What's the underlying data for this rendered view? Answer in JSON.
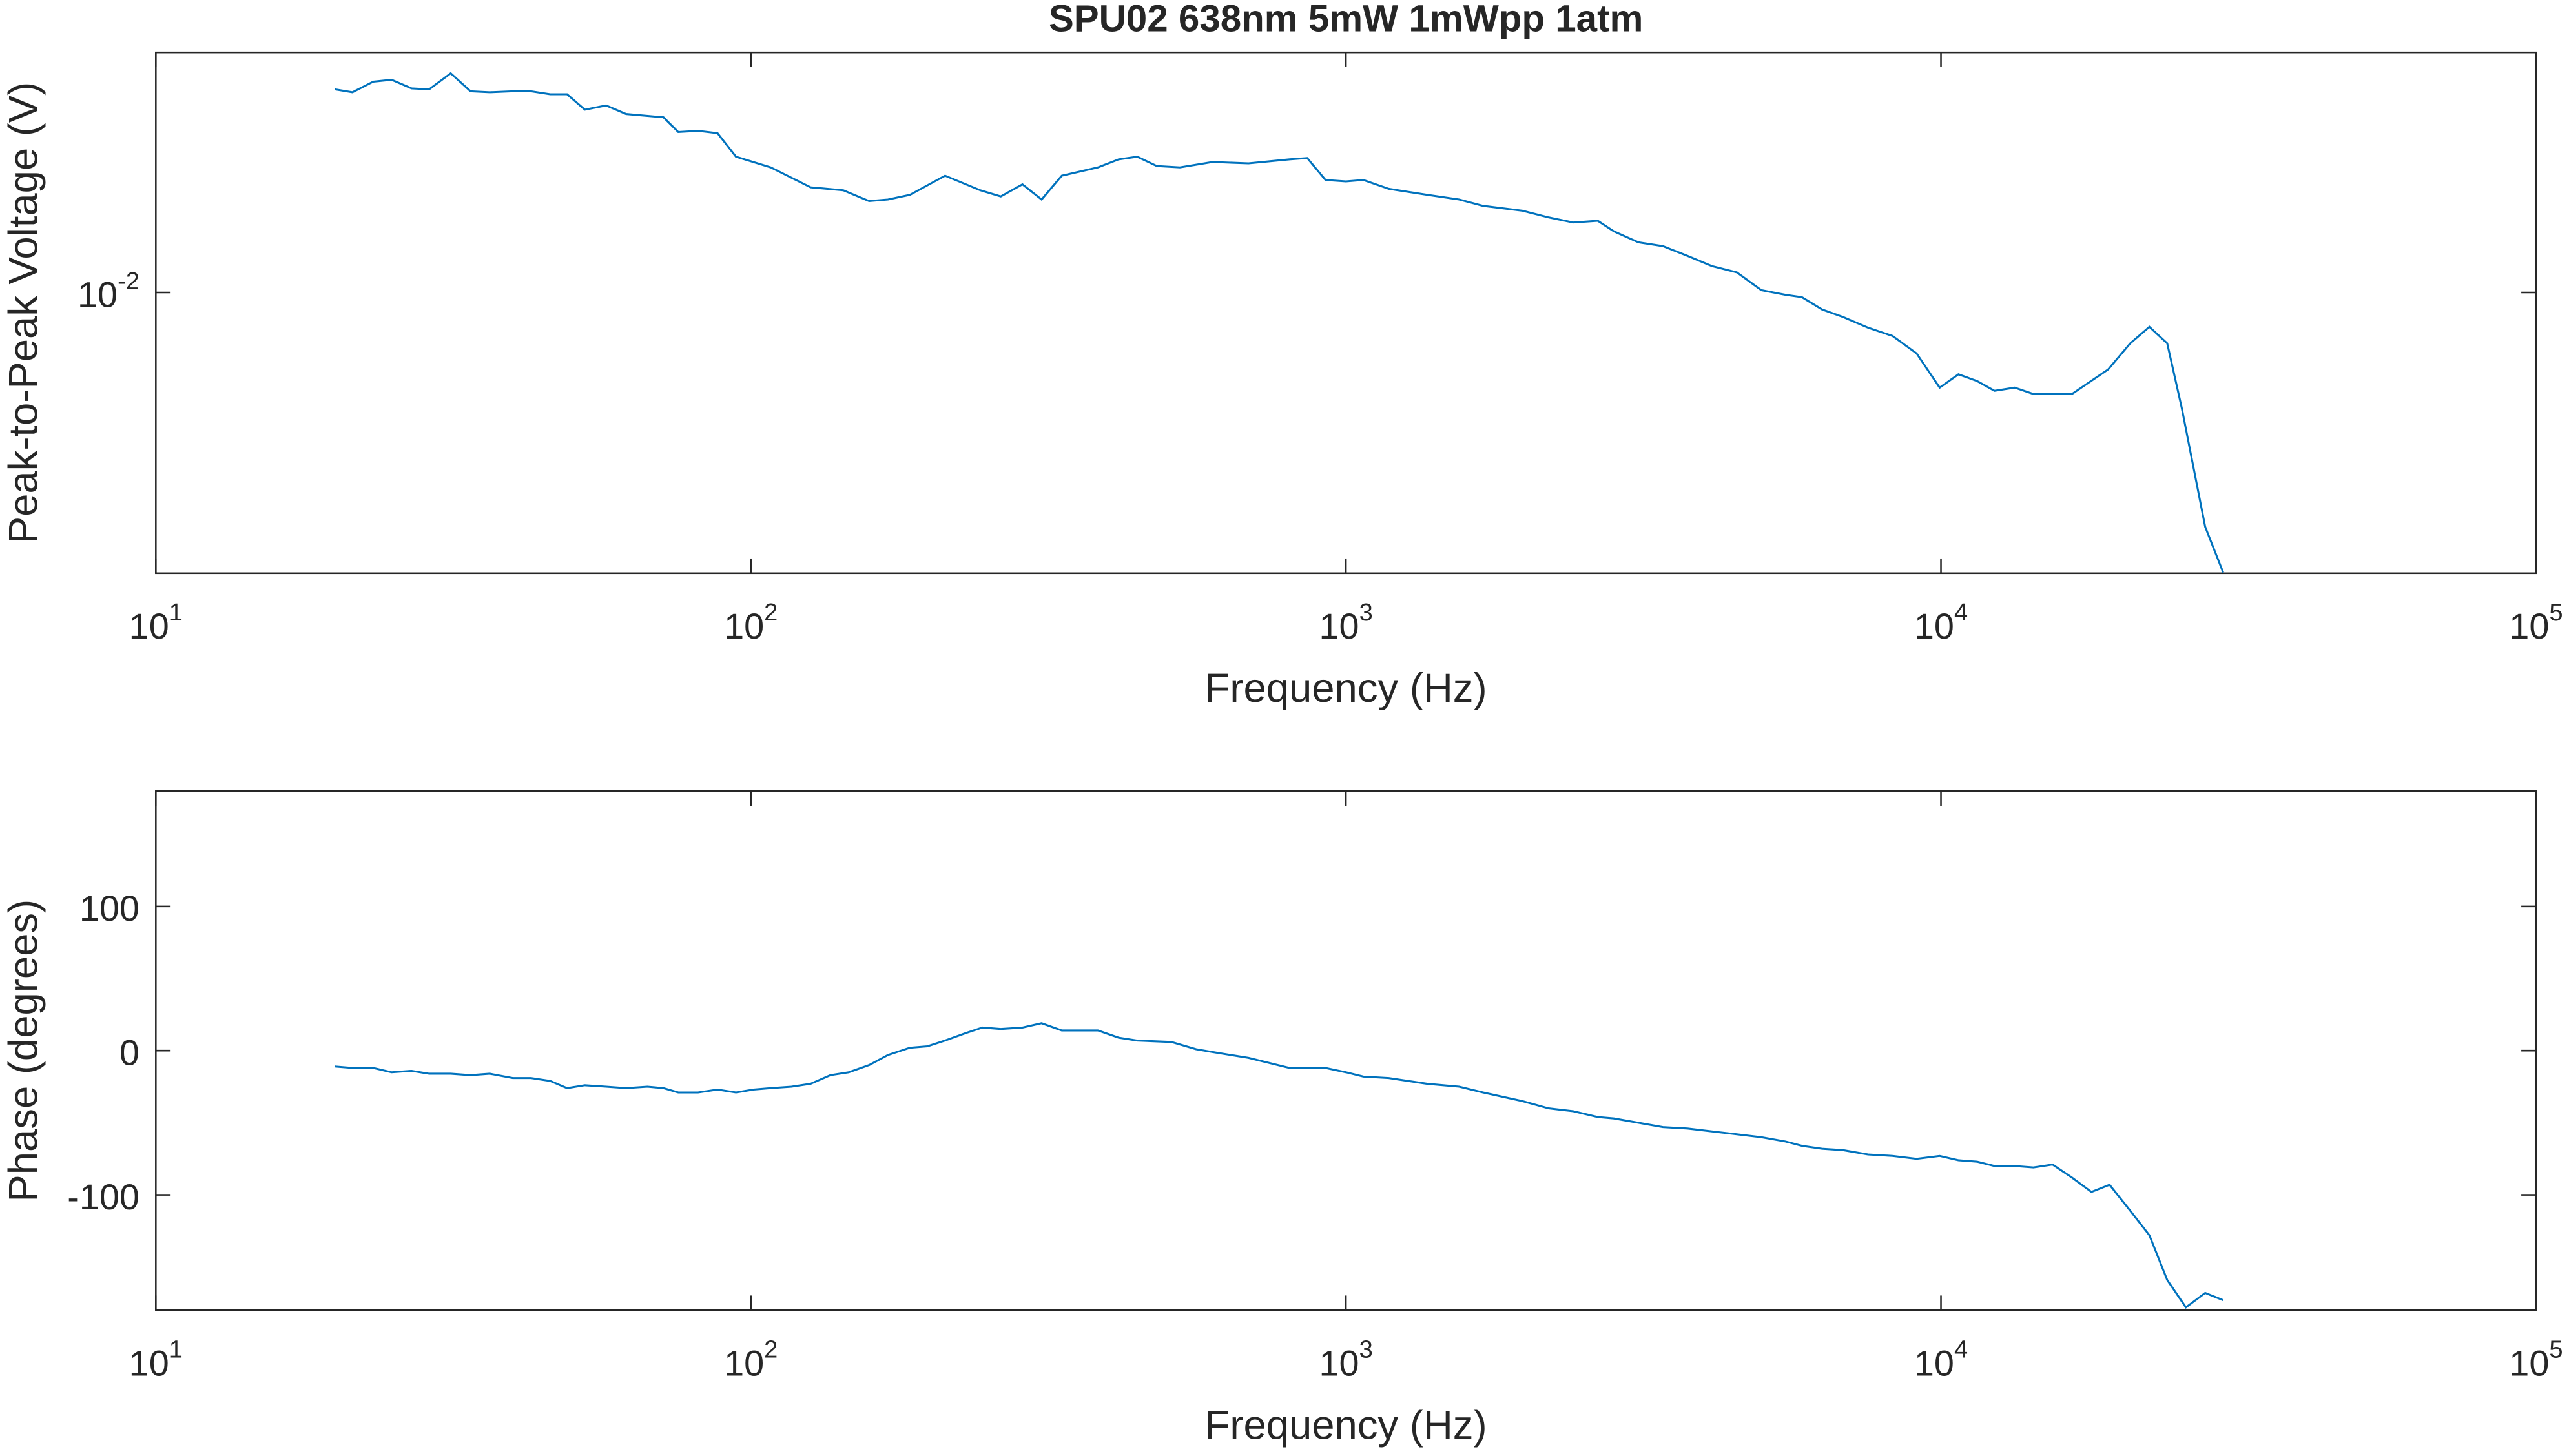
{
  "chart_data": [
    {
      "type": "line",
      "title": "SPU02 638nm 5mW 1mWpp 1atm",
      "x_label": "Frequency (Hz)",
      "y_label": "Peak-to-Peak Voltage (V)",
      "x_scale": "log",
      "y_scale": "log",
      "grid": false,
      "xlim": [
        10,
        100000
      ],
      "xticks": [
        {
          "value": 10,
          "label": "10^1"
        },
        {
          "value": 100,
          "label": "10^2"
        },
        {
          "value": 1000,
          "label": "10^3"
        },
        {
          "value": 10000,
          "label": "10^4"
        },
        {
          "value": 100000,
          "label": "10^5"
        }
      ],
      "ylim": [
        0.003,
        0.028
      ],
      "yticks": [
        {
          "value": 0.01,
          "label": "10^-2"
        }
      ],
      "x": [
        20,
        21.4,
        23.2,
        24.9,
        26.9,
        28.8,
        31.3,
        33.8,
        36.4,
        39.8,
        42.7,
        46,
        49.1,
        52.6,
        57.1,
        61.7,
        71.3,
        75.5,
        81.5,
        87.9,
        94.4,
        108,
        126,
        143,
        158,
        170,
        185,
        212,
        243,
        263,
        286,
        308,
        333,
        383,
        415,
        446,
        481,
        526,
        597,
        686,
        804,
        861,
        924,
        1000,
        1070,
        1180,
        1370,
        1550,
        1700,
        1980,
        2190,
        2410,
        2650,
        2820,
        3100,
        3410,
        3750,
        4120,
        4540,
        4990,
        5480,
        5840,
        6310,
        6850,
        7540,
        8290,
        9100,
        9950,
        10700,
        11500,
        12300,
        13300,
        14300,
        16600,
        19100,
        20800,
        22400,
        24000,
        25400,
        27800,
        29800
      ],
      "series": [
        {
          "color": "#0072bd",
          "values": [
            0.0239,
            0.0236,
            0.0247,
            0.0249,
            0.024,
            0.0239,
            0.0256,
            0.0237,
            0.0236,
            0.0237,
            0.0237,
            0.0234,
            0.0234,
            0.0219,
            0.0223,
            0.0215,
            0.0212,
            0.0199,
            0.02,
            0.0198,
            0.0179,
            0.0171,
            0.0157,
            0.0155,
            0.0148,
            0.0149,
            0.0152,
            0.0165,
            0.0155,
            0.0151,
            0.0159,
            0.0149,
            0.0165,
            0.0171,
            0.0177,
            0.0179,
            0.0172,
            0.0171,
            0.0175,
            0.0174,
            0.0177,
            0.0178,
            0.0162,
            0.0161,
            0.0162,
            0.0156,
            0.0152,
            0.0149,
            0.0145,
            0.0142,
            0.0138,
            0.0135,
            0.0136,
            0.013,
            0.0124,
            0.0122,
            0.0117,
            0.0112,
            0.0109,
            0.0101,
            0.0099,
            0.0098,
            0.0093,
            0.009,
            0.0086,
            0.0083,
            0.0077,
            0.00665,
            0.00704,
            0.00684,
            0.00656,
            0.00665,
            0.00647,
            0.00647,
            0.00719,
            0.00804,
            0.00863,
            0.00804,
            0.00608,
            0.00366,
            0.00301
          ]
        }
      ]
    },
    {
      "type": "line",
      "x_label": "Frequency (Hz)",
      "y_label": "Phase (degrees)",
      "x_scale": "log",
      "y_scale": "linear",
      "grid": false,
      "xlim": [
        10,
        100000
      ],
      "xticks": [
        {
          "value": 10,
          "label": "10^1"
        },
        {
          "value": 100,
          "label": "10^2"
        },
        {
          "value": 1000,
          "label": "10^3"
        },
        {
          "value": 10000,
          "label": "10^4"
        },
        {
          "value": 100000,
          "label": "10^5"
        }
      ],
      "ylim": [
        -180,
        180
      ],
      "yticks": [
        -100,
        0,
        100
      ],
      "x": [
        20,
        21.4,
        23.2,
        24.9,
        26.9,
        28.8,
        31.3,
        33.8,
        36.4,
        39.8,
        42.7,
        46,
        49.1,
        52.6,
        57.1,
        61.7,
        67,
        71.3,
        75.5,
        81.5,
        87.9,
        94.4,
        101,
        108,
        117,
        126,
        136,
        146,
        158,
        170,
        185,
        198,
        212,
        229,
        245,
        263,
        286,
        308,
        333,
        383,
        415,
        446,
        509,
        560,
        597,
        686,
        804,
        861,
        924,
        1000,
        1070,
        1180,
        1370,
        1550,
        1700,
        1980,
        2190,
        2410,
        2650,
        2820,
        3100,
        3410,
        3750,
        4120,
        4540,
        4990,
        5480,
        5840,
        6310,
        6850,
        7540,
        8290,
        9100,
        9950,
        10700,
        11500,
        12300,
        13300,
        14300,
        15400,
        16600,
        17900,
        19200,
        20800,
        22400,
        24000,
        25800,
        27800,
        29800
      ],
      "series": [
        {
          "color": "#0072bd",
          "values": [
            -11,
            -12,
            -12,
            -15,
            -14,
            -16,
            -16,
            -17,
            -16,
            -19,
            -19,
            -21,
            -26,
            -24,
            -25,
            -26,
            -25,
            -26,
            -29,
            -29,
            -27,
            -29,
            -27,
            -26,
            -25,
            -23,
            -17,
            -15,
            -10,
            -3,
            2,
            3,
            7,
            12,
            16,
            15,
            16,
            19,
            14,
            14,
            9,
            7,
            6,
            1,
            -1,
            -5,
            -12,
            -12,
            -12,
            -15,
            -18,
            -19,
            -23,
            -25,
            -29,
            -35,
            -40,
            -42,
            -46,
            -47,
            -50,
            -53,
            -54,
            -56,
            -58,
            -60,
            -63,
            -66,
            -68,
            -69,
            -72,
            -73,
            -75,
            -73,
            -76,
            -77,
            -80,
            -80,
            -81,
            -79,
            -88,
            -98,
            -93,
            -111,
            -128,
            -159,
            -178,
            -168,
            -173
          ]
        }
      ]
    }
  ]
}
